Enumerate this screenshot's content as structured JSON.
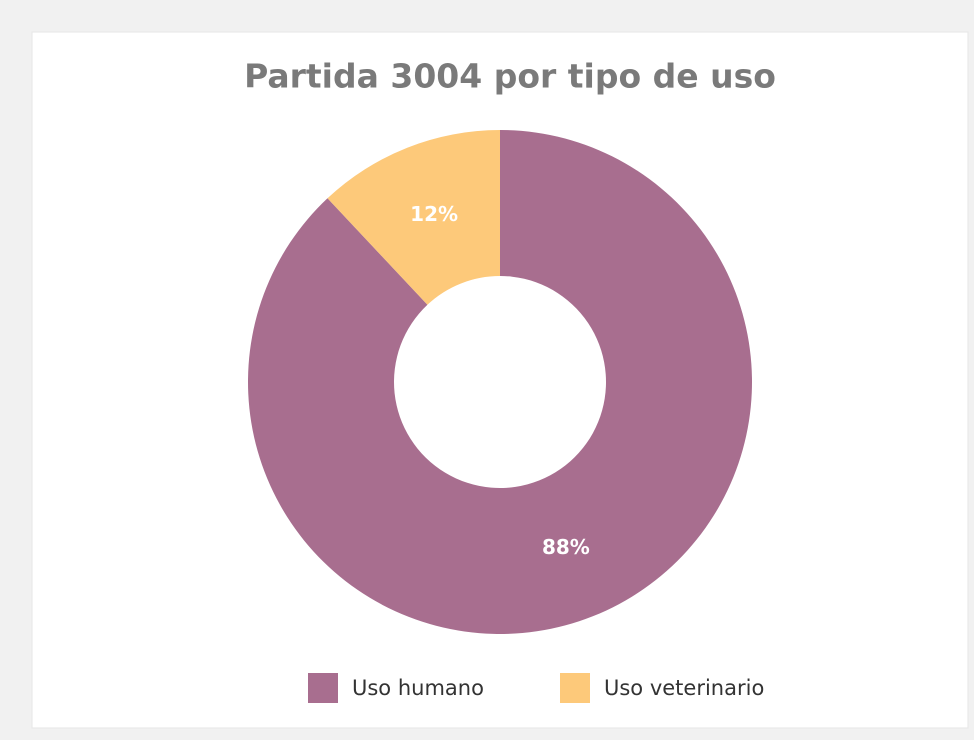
{
  "chart_data": {
    "type": "donut",
    "title": "Partida 3004 por tipo de uso",
    "categories": [
      "Uso humano",
      "Uso veterinario"
    ],
    "values": [
      88,
      12
    ],
    "value_labels": [
      "88%",
      "12%"
    ],
    "colors": [
      "#a86e8f",
      "#fdc97a"
    ],
    "legend": "bottom"
  }
}
